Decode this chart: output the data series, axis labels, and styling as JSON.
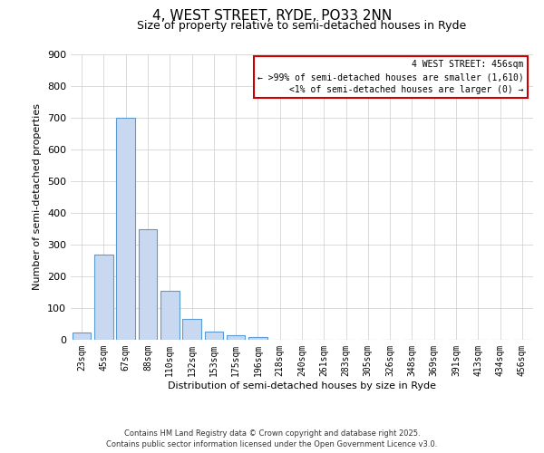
{
  "title": "4, WEST STREET, RYDE, PO33 2NN",
  "subtitle": "Size of property relative to semi-detached houses in Ryde",
  "xlabel": "Distribution of semi-detached houses by size in Ryde",
  "ylabel": "Number of semi-detached properties",
  "bar_labels": [
    "23sqm",
    "45sqm",
    "67sqm",
    "88sqm",
    "110sqm",
    "132sqm",
    "153sqm",
    "175sqm",
    "196sqm",
    "218sqm",
    "240sqm",
    "261sqm",
    "283sqm",
    "305sqm",
    "326sqm",
    "348sqm",
    "369sqm",
    "391sqm",
    "413sqm",
    "434sqm",
    "456sqm"
  ],
  "bar_values": [
    22,
    270,
    700,
    350,
    155,
    65,
    25,
    15,
    8,
    0,
    0,
    0,
    0,
    0,
    0,
    0,
    0,
    0,
    0,
    0,
    0
  ],
  "bar_color": "#c8d8f0",
  "bar_edge_color": "#5b9bd5",
  "ylim": [
    0,
    900
  ],
  "yticks": [
    0,
    100,
    200,
    300,
    400,
    500,
    600,
    700,
    800,
    900
  ],
  "annotation_box_color": "#cc0000",
  "annotation_title": "4 WEST STREET: 456sqm",
  "annotation_line1": "← >99% of semi-detached houses are smaller (1,610)",
  "annotation_line2": "<1% of semi-detached houses are larger (0) →",
  "footer_line1": "Contains HM Land Registry data © Crown copyright and database right 2025.",
  "footer_line2": "Contains public sector information licensed under the Open Government Licence v3.0.",
  "background_color": "#ffffff",
  "grid_color": "#cccccc",
  "title_fontsize": 11,
  "subtitle_fontsize": 9,
  "ylabel_fontsize": 8,
  "xlabel_fontsize": 8,
  "tick_fontsize": 8,
  "xtick_fontsize": 7
}
